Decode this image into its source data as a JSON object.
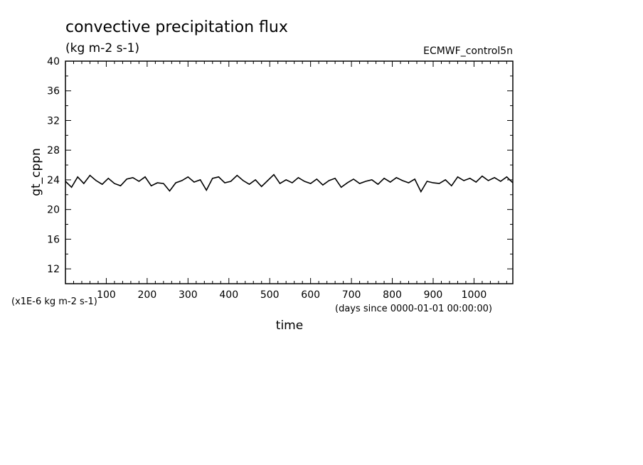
{
  "chart_data": {
    "type": "line",
    "title": "convective precipitation flux",
    "subtitle": "(kg m-2 s-1)",
    "source": "ECMWF_control5n",
    "xlabel": "time",
    "x_units": "(days since 0000-01-01 00:00:00)",
    "ylabel": "gt_cppn",
    "y_units": "(x1E-6 kg m-2 s-1)",
    "xlim": [
      0,
      1095
    ],
    "ylim": [
      10,
      40
    ],
    "x_ticks": [
      100,
      200,
      300,
      400,
      500,
      600,
      700,
      800,
      900,
      1000
    ],
    "y_ticks": [
      12,
      16,
      20,
      24,
      28,
      32,
      36,
      40
    ],
    "grid": false,
    "line_color": "#000000",
    "series": [
      {
        "x": [
          0,
          15,
          30,
          45,
          60,
          75,
          90,
          105,
          120,
          135,
          150,
          165,
          180,
          195,
          210,
          225,
          240,
          255,
          270,
          285,
          300,
          315,
          330,
          345,
          360,
          375,
          390,
          405,
          420,
          435,
          450,
          465,
          480,
          495,
          510,
          525,
          540,
          555,
          570,
          585,
          600,
          615,
          630,
          645,
          660,
          675,
          690,
          705,
          720,
          735,
          750,
          765,
          780,
          795,
          810,
          825,
          840,
          855,
          870,
          885,
          900,
          915,
          930,
          945,
          960,
          975,
          990,
          1005,
          1020,
          1035,
          1050,
          1065,
          1080,
          1095
        ],
        "y": [
          23.8,
          23.0,
          24.4,
          23.5,
          24.6,
          23.9,
          23.4,
          24.2,
          23.5,
          23.2,
          24.1,
          24.3,
          23.8,
          24.4,
          23.2,
          23.6,
          23.5,
          22.5,
          23.6,
          23.9,
          24.4,
          23.7,
          24.0,
          22.6,
          24.2,
          24.4,
          23.6,
          23.8,
          24.6,
          23.9,
          23.4,
          24.0,
          23.1,
          23.9,
          24.7,
          23.5,
          24.0,
          23.6,
          24.3,
          23.8,
          23.5,
          24.1,
          23.3,
          23.9,
          24.2,
          23.0,
          23.6,
          24.1,
          23.5,
          23.8,
          24.0,
          23.4,
          24.2,
          23.7,
          24.3,
          23.9,
          23.6,
          24.1,
          22.4,
          23.8,
          23.6,
          23.5,
          24.0,
          23.2,
          24.4,
          23.9,
          24.2,
          23.7,
          24.5,
          23.9,
          24.3,
          23.8,
          24.4,
          23.6
        ]
      }
    ]
  }
}
